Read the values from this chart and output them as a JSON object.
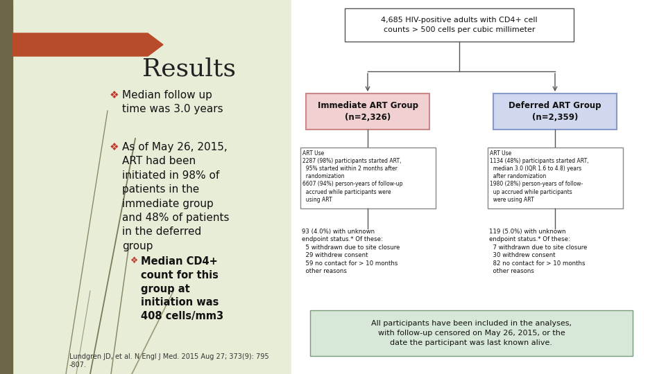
{
  "title": "Results",
  "slide_bg": "#e8edd8",
  "left_bar_color": "#6b6645",
  "arrow_color": "#b84c2a",
  "bullet1": "Median follow up\ntime was 3.0 years",
  "bullet2": "As of May 26, 2015,\nART had been\ninitiated in 98% of\npatients in the\nimmediate group\nand 48% of patients\nin the deferred\ngroup",
  "sub_bullet": "Median CD4+\ncount for this\ngroup at\ninitiation was\n408 cells/mm3",
  "citation": "Lundgren JD, et al. N Engl J Med. 2015 Aug 27; 373(9): 795\n-807.",
  "flowchart_top": "4,685 HIV-positive adults with CD4+ cell\ncounts > 500 cells per cubic millimeter",
  "imm_group": "Immediate ART Group\n(n=2,326)",
  "def_group": "Deferred ART Group\n(n=2,359)",
  "imm_art": "ART Use\n2287 (98%) participants started ART,\n  95% started within 2 months after\n  randomization\n6607 (94%) person-years of follow-up\n  accrued while participants were\n  using ART",
  "def_art": "ART Use\n1134 (48%) participants started ART,\n  median 3.0 (IQR 1.6 to 4.8) years\n  after randomization\n1980 (28%) person-years of follow-\n  up accrued while participants\n  were using ART",
  "imm_endpoint": "93 (4.0%) with unknown\nendpoint status.* Of these:\n  5 withdrawn due to site closure\n  29 withdrew consent\n  59 no contact for > 10 months\n  other reasons",
  "def_endpoint": "119 (5.0%) with unknown\nendpoint status.* Of these:\n  7 withdrawn due to site closure\n  30 withdrew consent\n  82 no contact for > 10 months\n  other reasons",
  "bottom_note": "All participants have been included in the analyses,\nwith follow-up censored on May 26, 2015, or the\ndate the participant was last known alive.",
  "imm_color": "#f0d0d0",
  "def_color": "#d0d8f0",
  "bottom_note_bg": "#d8e8d8"
}
